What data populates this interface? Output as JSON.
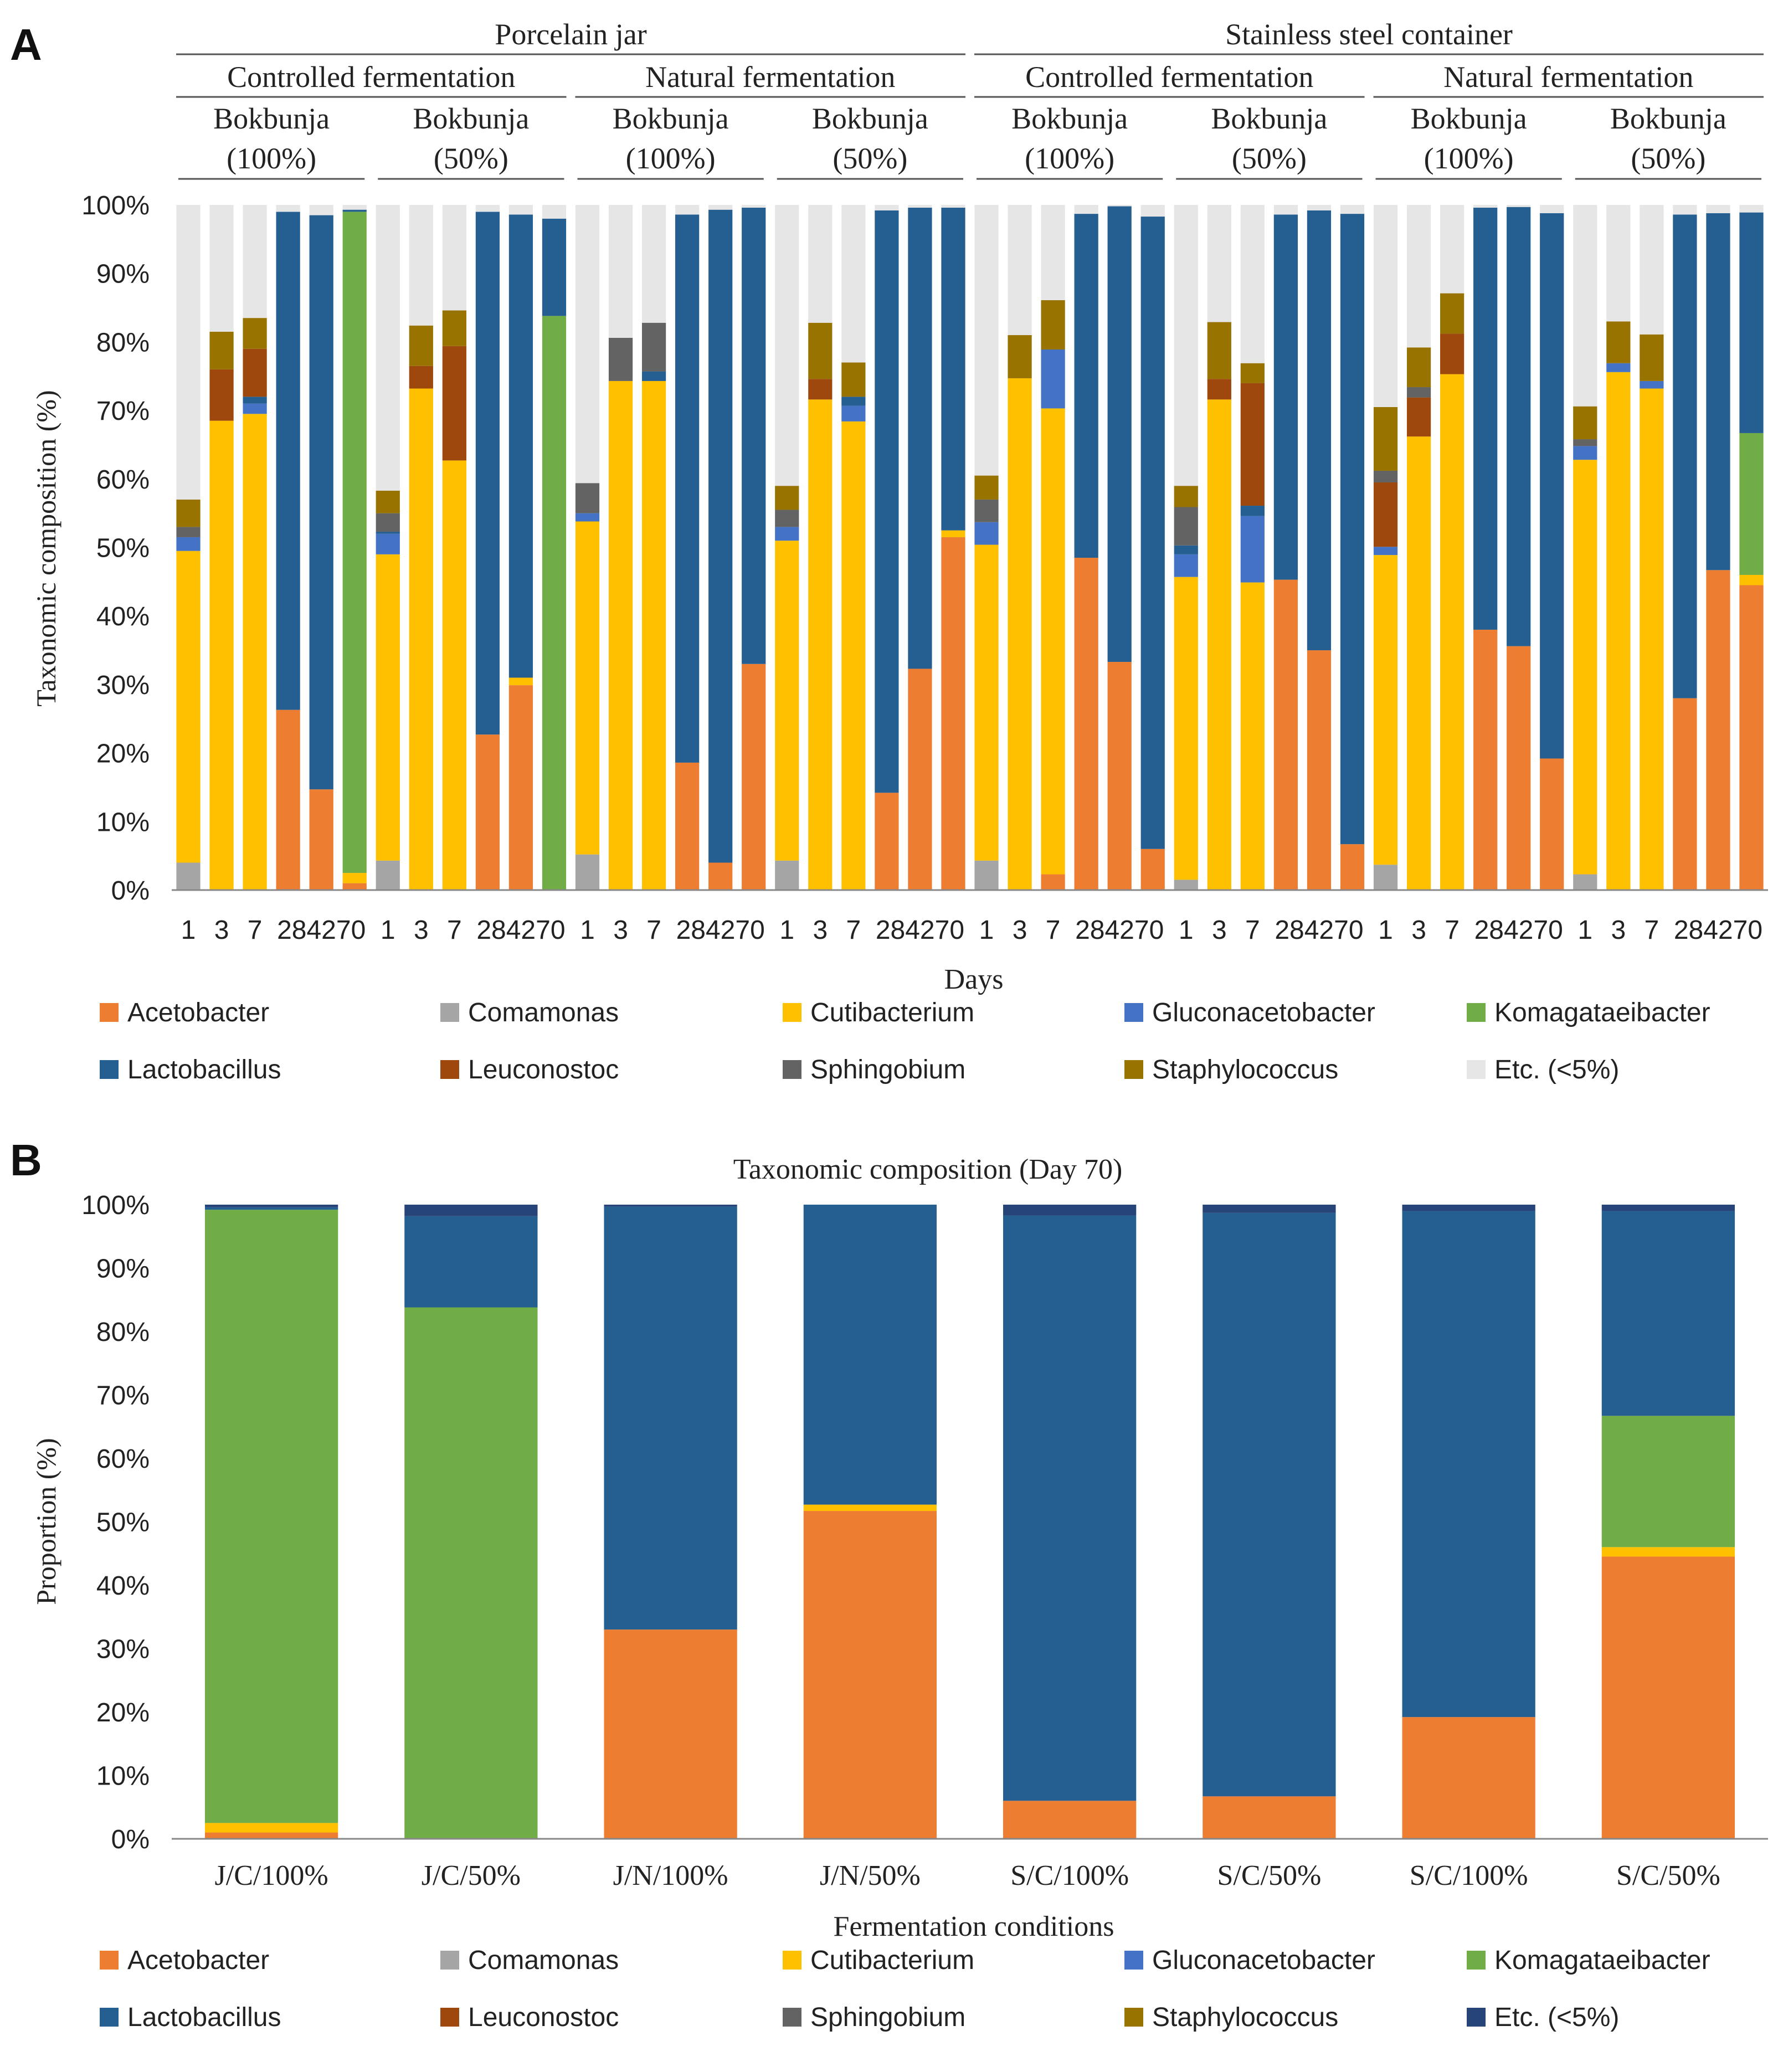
{
  "taxa": [
    {
      "name": "Acetobacter",
      "color": "#ED7D31"
    },
    {
      "name": "Comamonas",
      "color": "#A5A5A5"
    },
    {
      "name": "Cutibacterium",
      "color": "#FFC000"
    },
    {
      "name": "Gluconacetobacter",
      "color": "#4472C4"
    },
    {
      "name": "Komagataeibacter",
      "color": "#70AD47"
    },
    {
      "name": "Lactobacillus",
      "color": "#255E91"
    },
    {
      "name": "Leuconostoc",
      "color": "#9E480E"
    },
    {
      "name": "Sphingobium",
      "color": "#636363"
    },
    {
      "name": "Staphylococcus",
      "color": "#997300"
    },
    {
      "name": "Etc. (<5%)",
      "color": "#E7E6E6"
    }
  ],
  "etc_color_b": "#264478",
  "chart_data": [
    {
      "panel": "A",
      "type": "bar",
      "stacked": true,
      "ylabel": "Taxonomic composition (%)",
      "xlabel": "Days",
      "ylim": [
        0,
        100
      ],
      "yticks": [
        "0%",
        "10%",
        "20%",
        "30%",
        "40%",
        "50%",
        "60%",
        "70%",
        "80%",
        "90%",
        "100%"
      ],
      "header_level1": [
        "Porcelain jar",
        "Stainless steel container"
      ],
      "header_level2": [
        "Controlled fermentation",
        "Natural fermentation",
        "Controlled fermentation",
        "Natural fermentation"
      ],
      "header_level3": [
        {
          "line1": "Bokbunja",
          "line2": "(100%)"
        },
        {
          "line1": "Bokbunja",
          "line2": "(50%)"
        },
        {
          "line1": "Bokbunja",
          "line2": "(100%)"
        },
        {
          "line1": "Bokbunja",
          "line2": "(50%)"
        },
        {
          "line1": "Bokbunja",
          "line2": "(100%)"
        },
        {
          "line1": "Bokbunja",
          "line2": "(50%)"
        },
        {
          "line1": "Bokbunja",
          "line2": "(100%)"
        },
        {
          "line1": "Bokbunja",
          "line2": "(50%)"
        }
      ],
      "day_labels": [
        "1",
        "3",
        "7",
        "28",
        "42",
        "70"
      ],
      "series_order": [
        "Acetobacter",
        "Comamonas",
        "Cutibacterium",
        "Gluconacetobacter",
        "Komagataeibacter",
        "Lactobacillus",
        "Leuconostoc",
        "Sphingobium",
        "Staphylococcus",
        "Etc. (<5%)"
      ],
      "bars": [
        [
          0,
          4,
          45.5,
          2,
          0,
          0,
          0,
          1.5,
          4,
          43
        ],
        [
          0,
          0,
          68.5,
          0,
          0,
          0,
          7.5,
          0,
          5.5,
          18.5
        ],
        [
          0,
          0,
          69.5,
          1.5,
          0,
          1,
          7,
          0,
          4.5,
          16.5
        ],
        [
          26.3,
          0,
          0,
          0,
          0,
          72.7,
          0,
          0,
          0,
          1
        ],
        [
          14.7,
          0,
          0,
          0,
          0,
          83.8,
          0,
          0,
          0,
          1.5
        ],
        [
          1,
          0,
          1.5,
          0,
          96.5,
          0.3,
          0,
          0,
          0,
          0.7
        ],
        [
          0,
          4.3,
          44.7,
          3,
          0,
          0.3,
          0,
          2.7,
          3.3,
          41.7
        ],
        [
          0,
          0,
          73.2,
          0,
          0,
          0,
          3.3,
          0,
          5.9,
          17.6
        ],
        [
          0,
          0,
          62.7,
          0,
          0,
          0,
          16.7,
          0,
          5.2,
          15.4
        ],
        [
          22.7,
          0,
          0,
          0,
          0,
          76.3,
          0,
          0,
          0,
          1
        ],
        [
          29.9,
          0,
          1.1,
          0,
          0,
          67.6,
          0,
          0,
          0,
          1.4
        ],
        [
          0,
          0,
          0,
          0,
          83.8,
          14.2,
          0,
          0,
          0,
          2
        ],
        [
          0,
          5.2,
          48.6,
          1.2,
          0,
          0,
          0,
          4.4,
          0,
          40.6
        ],
        [
          0,
          0,
          74.3,
          0,
          0,
          0,
          0,
          6.3,
          0,
          19.4
        ],
        [
          0,
          0,
          74.3,
          0,
          0,
          1.4,
          0,
          7.1,
          0,
          17.2
        ],
        [
          18.6,
          0,
          0,
          0,
          0,
          80,
          0,
          0,
          0,
          1.4
        ],
        [
          4,
          0,
          0,
          0,
          0,
          95.3,
          0,
          0,
          0,
          0.7
        ],
        [
          33,
          0,
          0,
          0,
          0,
          66.6,
          0,
          0,
          0,
          0.4
        ],
        [
          0,
          4.3,
          46.7,
          2,
          0,
          0,
          0,
          2.5,
          3.5,
          41
        ],
        [
          0,
          0,
          71.6,
          0,
          0,
          0,
          3,
          0,
          8.2,
          17.2
        ],
        [
          0,
          0,
          68.4,
          2.3,
          0,
          1.3,
          0,
          0,
          5,
          23
        ],
        [
          14.2,
          0,
          0,
          0,
          0,
          85,
          0,
          0,
          0,
          0.8
        ],
        [
          32.3,
          0,
          0,
          0,
          0,
          67.3,
          0,
          0,
          0,
          0.4
        ],
        [
          51.5,
          0,
          1,
          0,
          0,
          47.1,
          0,
          0,
          0,
          0.4
        ],
        [
          0,
          4.3,
          46.1,
          3.3,
          0,
          0,
          0,
          3.3,
          3.5,
          39.5
        ],
        [
          0,
          0,
          74.7,
          0,
          0,
          0,
          0,
          0,
          6.3,
          19
        ],
        [
          2.3,
          0,
          68,
          8.6,
          0,
          0,
          0,
          0,
          7.2,
          13.9
        ],
        [
          48.5,
          0,
          0,
          0,
          0,
          50.2,
          0,
          0,
          0,
          1.3
        ],
        [
          33.3,
          0,
          0,
          0,
          0,
          66.5,
          0,
          0,
          0,
          0.2
        ],
        [
          6,
          0,
          0,
          0,
          0,
          92.3,
          0,
          0,
          0,
          1.7
        ],
        [
          0,
          1.5,
          44.2,
          3.3,
          0,
          1.3,
          0,
          5.6,
          3.1,
          41
        ],
        [
          0,
          0,
          71.6,
          0,
          0,
          0,
          3,
          0,
          8.3,
          17.1
        ],
        [
          0,
          0,
          44.9,
          9.7,
          0,
          1.5,
          17.9,
          0,
          2.9,
          23.1
        ],
        [
          45.3,
          0,
          0,
          0,
          0,
          53.3,
          0,
          0,
          0,
          1.4
        ],
        [
          35,
          0,
          0,
          0,
          0,
          64.2,
          0,
          0,
          0,
          0.8
        ],
        [
          6.7,
          0,
          0,
          0,
          0,
          92,
          0,
          0,
          0,
          1.3
        ],
        [
          0,
          3.7,
          45.2,
          1.2,
          0,
          0,
          9.4,
          1.7,
          9.3,
          29.5
        ],
        [
          0,
          0,
          66.2,
          0,
          0,
          0,
          5.7,
          1.5,
          5.8,
          20.8
        ],
        [
          0,
          0,
          75.3,
          0,
          0,
          0,
          5.9,
          0,
          5.9,
          12.9
        ],
        [
          38,
          0,
          0,
          0,
          0,
          61.6,
          0,
          0,
          0,
          0.4
        ],
        [
          35.6,
          0,
          0,
          0,
          0,
          64.1,
          0,
          0,
          0,
          0.3
        ],
        [
          19.2,
          0,
          0,
          0,
          0,
          79.6,
          0,
          0,
          0,
          1.2
        ],
        [
          0,
          2.3,
          60.5,
          2,
          0,
          0,
          0,
          1,
          4.8,
          29.4
        ],
        [
          0,
          0,
          75.6,
          1.3,
          0,
          0,
          0,
          0,
          6.1,
          17
        ],
        [
          0,
          0,
          73.2,
          1.1,
          0,
          0,
          0,
          0,
          6.8,
          18.9
        ],
        [
          28,
          0,
          0,
          0,
          0,
          70.6,
          0,
          0,
          0,
          1.4
        ],
        [
          46.7,
          0,
          0,
          0,
          0,
          52.1,
          0,
          0,
          0,
          1.2
        ],
        [
          44.5,
          0,
          1.5,
          0,
          20.7,
          32.2,
          0,
          0,
          0,
          1.1
        ]
      ]
    },
    {
      "panel": "B",
      "type": "bar",
      "stacked": true,
      "title": "Taxonomic composition (Day 70)",
      "ylabel": "Proportion (%)",
      "xlabel": "Fermentation conditions",
      "ylim": [
        0,
        100
      ],
      "yticks": [
        "0%",
        "10%",
        "20%",
        "30%",
        "40%",
        "50%",
        "60%",
        "70%",
        "80%",
        "90%",
        "100%"
      ],
      "categories": [
        "J/C/100%",
        "J/C/50%",
        "J/N/100%",
        "J/N/50%",
        "S/C/100%",
        "S/C/50%",
        "S/C/100%",
        "S/C/50%"
      ],
      "series_order": [
        "Acetobacter",
        "Comamonas",
        "Cutibacterium",
        "Gluconacetobacter",
        "Komagataeibacter",
        "Lactobacillus",
        "Leuconostoc",
        "Sphingobium",
        "Staphylococcus",
        "Etc. (<5%)"
      ],
      "bars": [
        [
          1,
          0,
          1.5,
          0,
          96.7,
          0.4,
          0,
          0,
          0,
          0.4
        ],
        [
          0,
          0,
          0,
          0,
          83.8,
          14.4,
          0,
          0,
          0,
          1.8
        ],
        [
          33,
          0,
          0,
          0,
          0,
          66.7,
          0,
          0,
          0,
          0.3
        ],
        [
          51.7,
          0,
          1,
          0,
          0,
          47.3,
          0,
          0,
          0,
          0
        ],
        [
          6,
          0,
          0,
          0,
          0,
          92.3,
          0,
          0,
          0,
          1.7
        ],
        [
          6.7,
          0,
          0,
          0,
          0,
          92,
          0,
          0,
          0,
          1.3
        ],
        [
          19.2,
          0,
          0,
          0,
          0,
          79.8,
          0,
          0,
          0,
          1
        ],
        [
          44.5,
          0,
          1.5,
          0,
          20.7,
          32.3,
          0,
          0,
          0,
          1
        ]
      ]
    }
  ]
}
